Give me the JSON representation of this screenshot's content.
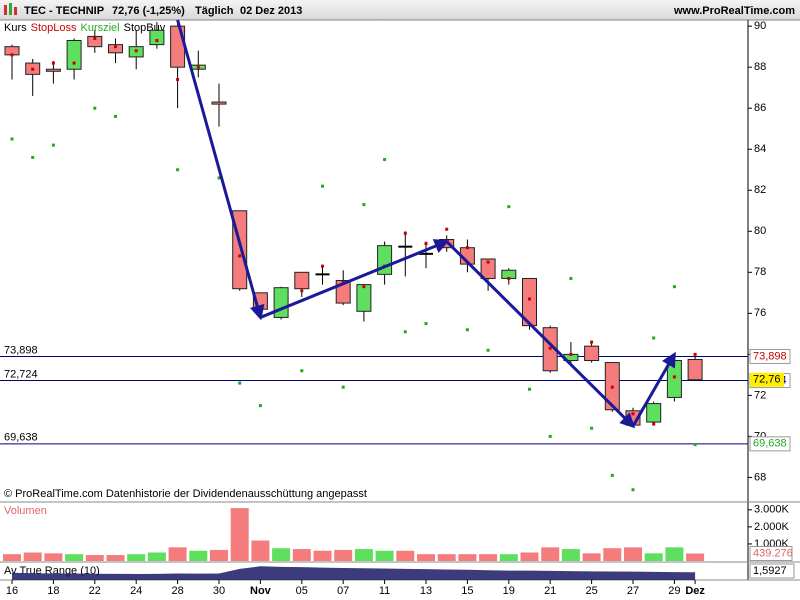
{
  "chart_data": [
    {
      "type": "candlestick",
      "title": "TEC - TECHNIP",
      "last_price": "72,76 (-1,25%)",
      "period": "Täglich",
      "date": "02 Dez 2013",
      "source": "www.ProRealTime.com",
      "footnote": "© ProRealTime.com  Datenhistorie der Dividendenausschüttung angepasst",
      "categories": [
        "16",
        null,
        "18",
        null,
        "22",
        null,
        "24",
        null,
        "28",
        null,
        "30",
        null,
        "Nov",
        null,
        "05",
        null,
        "07",
        null,
        "11",
        null,
        "13",
        null,
        "15",
        null,
        "19",
        null,
        "21",
        null,
        "25",
        null,
        "27",
        null,
        "29",
        "Dez"
      ],
      "up_color": "#5ee05e",
      "down_color": "#f47c7c",
      "series": [
        {
          "name": "Kurs",
          "color": "#000000",
          "open": [
            89.0,
            88.2,
            87.9,
            87.9,
            89.5,
            89.1,
            88.5,
            89.1,
            90.0,
            87.9,
            86.3,
            81.0,
            77.0,
            75.8,
            78.0,
            77.9,
            77.6,
            76.1,
            77.9,
            79.25,
            78.9,
            79.6,
            79.2,
            78.65,
            77.7,
            77.7,
            75.3,
            73.7,
            74.4,
            73.6,
            71.25,
            70.7,
            71.9,
            73.75
          ],
          "high": [
            89.1,
            88.4,
            88.3,
            89.4,
            89.8,
            89.4,
            89.8,
            90.2,
            90.3,
            88.8,
            87.2,
            81.0,
            77.0,
            77.3,
            78.0,
            78.3,
            78.1,
            77.4,
            79.5,
            80.0,
            79.5,
            79.8,
            79.6,
            78.65,
            78.2,
            77.7,
            75.4,
            74.6,
            74.6,
            73.6,
            71.4,
            71.7,
            73.9,
            73.9
          ],
          "low": [
            87.4,
            86.6,
            87.2,
            87.4,
            88.7,
            88.2,
            87.9,
            88.9,
            86.0,
            87.5,
            85.1,
            77.1,
            75.8,
            75.7,
            76.8,
            77.4,
            76.4,
            75.6,
            77.4,
            77.8,
            78.2,
            79.0,
            78.0,
            77.1,
            77.4,
            75.2,
            73.1,
            73.5,
            73.6,
            71.2,
            70.5,
            70.6,
            71.7,
            72.7
          ],
          "close": [
            88.6,
            87.65,
            87.8,
            89.3,
            89.0,
            88.7,
            89.0,
            89.8,
            88.0,
            88.1,
            86.2,
            77.2,
            76.2,
            77.25,
            77.2,
            77.9,
            76.5,
            77.4,
            79.3,
            79.25,
            78.9,
            79.2,
            78.4,
            77.7,
            78.1,
            75.4,
            73.2,
            74.0,
            73.7,
            71.3,
            70.55,
            71.6,
            73.7,
            72.76
          ]
        },
        {
          "name": "StopLoss",
          "color": "#cc0000",
          "values": [
            88.6,
            87.9,
            88.2,
            88.2,
            89.4,
            89.0,
            88.8,
            89.3,
            87.4,
            88.0,
            null,
            78.8,
            76.3,
            null,
            77.1,
            78.3,
            77.5,
            77.3,
            78.3,
            79.9,
            79.4,
            80.1,
            79.2,
            78.5,
            77.7,
            76.7,
            74.3,
            74.0,
            74.6,
            72.4,
            71.1,
            70.6,
            72.9,
            74.0
          ]
        },
        {
          "name": "Kursziel",
          "color": "#22aa22",
          "values": [
            84.5,
            83.6,
            84.2,
            null,
            86.0,
            85.6,
            null,
            null,
            83.0,
            null,
            82.6,
            72.6,
            71.5,
            null,
            73.2,
            82.2,
            72.4,
            81.3,
            83.5,
            75.1,
            75.5,
            null,
            75.2,
            74.2,
            81.2,
            72.3,
            70.0,
            77.7,
            70.4,
            68.1,
            67.4,
            74.8,
            77.3,
            69.6
          ]
        },
        {
          "name": "StopBuy",
          "color": "#000000"
        }
      ],
      "trend_line": {
        "color": "#1a1a99",
        "x": [
          8,
          12,
          21,
          30,
          32
        ],
        "y": [
          90.3,
          75.8,
          79.5,
          70.5,
          74.0
        ]
      },
      "levels": [
        {
          "value": 73.898,
          "label": "73,898",
          "color": "#cc0000"
        },
        {
          "value": 72.724,
          "label": "72,724",
          "color": "#000080"
        },
        {
          "value": 69.638,
          "label": "69,638",
          "color": "#22aa22"
        }
      ],
      "last_tag": {
        "value": 72.76,
        "label": "72,76",
        "color": "#ffee00"
      },
      "ylim": [
        66.9,
        90.3
      ],
      "yticks": [
        68,
        70,
        72,
        74,
        76,
        78,
        80,
        82,
        84,
        86,
        88,
        90
      ]
    },
    {
      "type": "bar",
      "title": "Volumen",
      "values": [
        400,
        500,
        450,
        400,
        350,
        350,
        400,
        500,
        800,
        600,
        650,
        3100,
        1200,
        750,
        700,
        600,
        650,
        700,
        600,
        600,
        400,
        400,
        400,
        400,
        400,
        500,
        800,
        700,
        450,
        750,
        800,
        450,
        800,
        439.276
      ],
      "value_labels": [
        null,
        null,
        null,
        null,
        null,
        null,
        null,
        null,
        null,
        null,
        null,
        null,
        null,
        null,
        null,
        null,
        null,
        null,
        null,
        null,
        null,
        null,
        null,
        null,
        null,
        null,
        null,
        null,
        null,
        null,
        null,
        null,
        null,
        "439.276"
      ],
      "ylim": [
        0,
        3400
      ],
      "yticks": [
        {
          "value": 1000,
          "label": "1.000K"
        },
        {
          "value": 2000,
          "label": "2.000K"
        },
        {
          "value": 3000,
          "label": "3.000K"
        }
      ]
    },
    {
      "type": "area",
      "title": "Av True Range (10)",
      "color": "#1a1a66",
      "values": [
        1.55,
        1.52,
        1.5,
        1.5,
        1.48,
        1.47,
        1.46,
        1.47,
        1.5,
        1.49,
        1.5,
        1.85,
        2.05,
        2.0,
        1.98,
        1.95,
        1.92,
        1.9,
        1.88,
        1.85,
        1.83,
        1.8,
        1.78,
        1.75,
        1.72,
        1.72,
        1.7,
        1.68,
        1.66,
        1.65,
        1.64,
        1.62,
        1.6,
        1.5927
      ],
      "value_labels": [
        null,
        null,
        null,
        null,
        null,
        null,
        null,
        null,
        null,
        null,
        null,
        null,
        null,
        null,
        null,
        null,
        null,
        null,
        null,
        null,
        null,
        null,
        null,
        null,
        null,
        null,
        null,
        null,
        null,
        null,
        null,
        null,
        null,
        "1,5927"
      ],
      "ylim": [
        1.0,
        2.3
      ]
    }
  ]
}
